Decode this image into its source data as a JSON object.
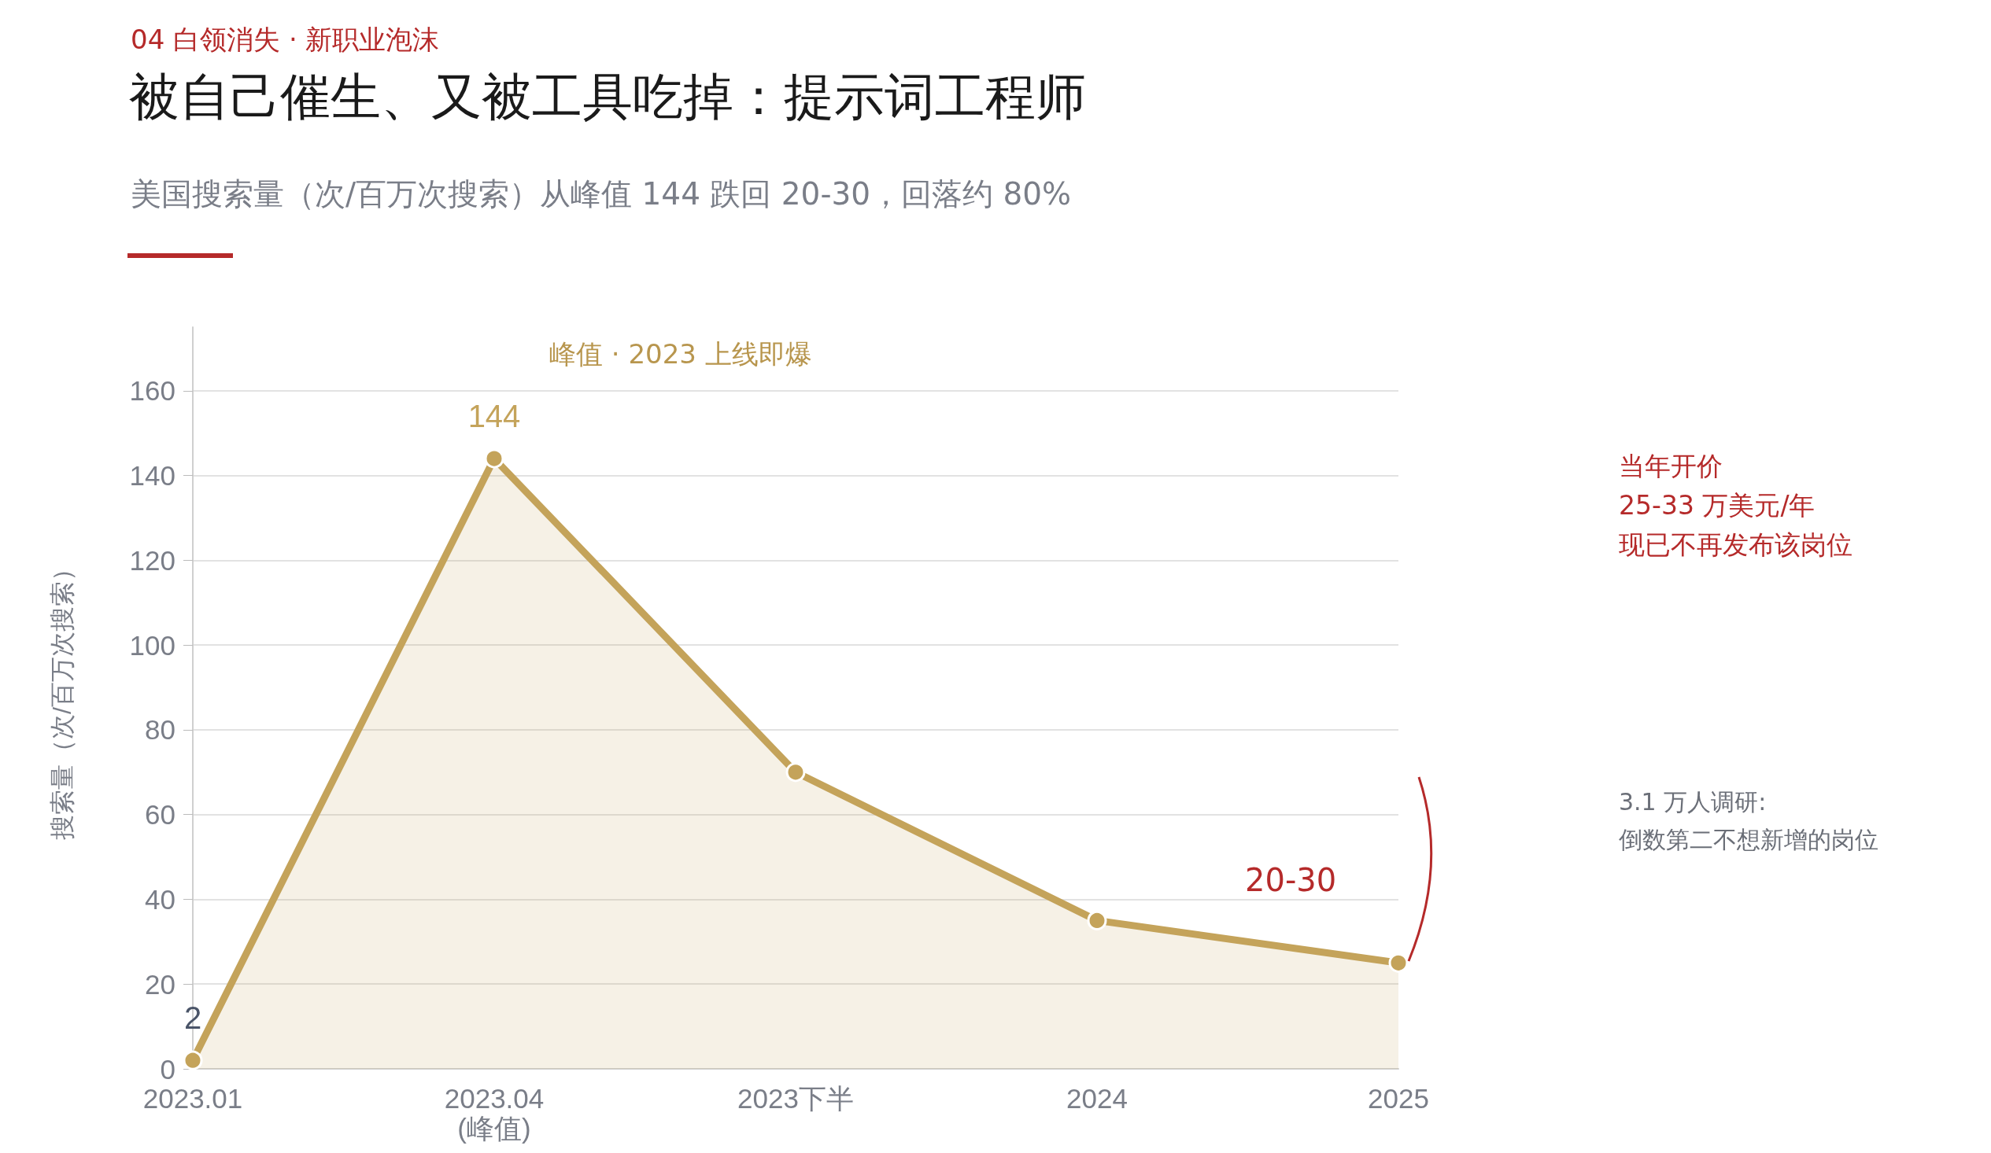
{
  "chart_data": {
    "type": "area",
    "title": "被自己催生、又被工具吃掉：提示词工程师",
    "subtitle": "美国搜索量（次/百万次搜索）从峰值 144 跌回 20-30，回落约 80%",
    "ylabel": "搜索量（次/百万次搜索）",
    "categories": [
      "2023.01",
      "2023.04\n(峰值)",
      "2023下半",
      "2024",
      "2025"
    ],
    "values": [
      2,
      144,
      70,
      35,
      25
    ],
    "value_labels": [
      "2",
      "144",
      null,
      null,
      null
    ],
    "color": "#c4a35a",
    "marker": "circle",
    "ylim": [
      0,
      175
    ],
    "yticks": [
      0,
      20,
      40,
      60,
      80,
      100,
      120,
      140,
      160
    ],
    "grid": "y",
    "annotations": [
      "04 白领消失 · 新职业泡沫",
      "峰值 · 2023 上线即爆",
      "20-30",
      "当年开价\n25-33 万美元/年",
      "3.1 万人调研:\n倒数第二不想新增的岗位",
      "现已不再发布该岗位"
    ]
  }
}
